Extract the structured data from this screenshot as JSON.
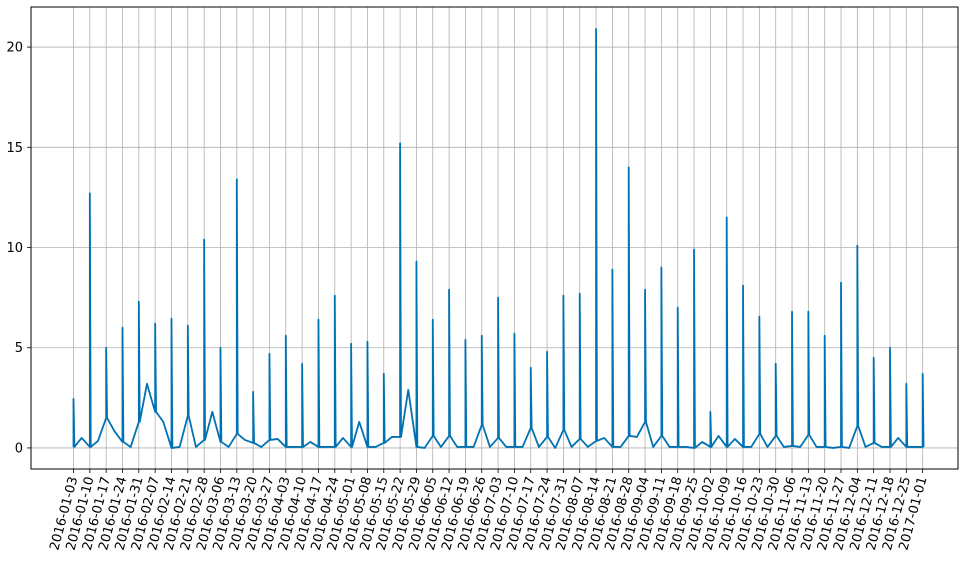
{
  "chart_data": {
    "type": "line",
    "title": "",
    "xlabel": "",
    "ylabel": "",
    "ylim": [
      -1.05,
      22.0
    ],
    "yticks": [
      0,
      5,
      10,
      15,
      20
    ],
    "grid": true,
    "line_color": "#0072B2",
    "x_tick_labels": [
      "2016-01-03",
      "2016-01-10",
      "2016-01-17",
      "2016-01-24",
      "2016-01-31",
      "2016-02-07",
      "2016-02-14",
      "2016-02-21",
      "2016-02-28",
      "2016-03-06",
      "2016-03-13",
      "2016-03-20",
      "2016-03-27",
      "2016-04-03",
      "2016-04-10",
      "2016-04-17",
      "2016-04-24",
      "2016-05-01",
      "2016-05-08",
      "2016-05-15",
      "2016-05-22",
      "2016-05-29",
      "2016-06-05",
      "2016-06-12",
      "2016-06-19",
      "2016-06-26",
      "2016-07-03",
      "2016-07-10",
      "2016-07-17",
      "2016-07-24",
      "2016-07-31",
      "2016-08-07",
      "2016-08-14",
      "2016-08-21",
      "2016-08-28",
      "2016-09-04",
      "2016-09-11",
      "2016-09-18",
      "2016-09-25",
      "2016-10-02",
      "2016-10-09",
      "2016-10-16",
      "2016-10-23",
      "2016-10-30",
      "2016-11-06",
      "2016-11-13",
      "2016-11-20",
      "2016-11-27",
      "2016-12-04",
      "2016-12-11",
      "2016-12-18",
      "2016-12-25",
      "2017-01-01"
    ],
    "series": [
      {
        "peaks": [
          2.45,
          12.7,
          5.0,
          6.0,
          7.3,
          6.2,
          6.45,
          6.1,
          10.4,
          5.0,
          13.4,
          2.8,
          4.7,
          5.6,
          4.2,
          6.4,
          7.6,
          5.2,
          5.3,
          3.7,
          15.2,
          9.3,
          6.4,
          7.9,
          5.4,
          5.6,
          7.5,
          5.7,
          4.0,
          4.8,
          7.6,
          7.7,
          20.9,
          8.9,
          14.0,
          7.9,
          9.0,
          7.0,
          9.9,
          1.8,
          11.5,
          8.1,
          6.55,
          4.2,
          6.8,
          6.8,
          5.6,
          8.25,
          10.1,
          4.5,
          5.0,
          3.2,
          3.7
        ],
        "valleys": [
          0.05,
          0.5,
          0.05,
          0.35,
          1.5,
          0.85,
          0.3,
          0.05,
          1.3,
          3.2,
          1.8,
          1.3,
          0.0,
          0.05,
          1.6,
          0.05,
          0.4,
          1.8,
          0.3,
          0.05,
          0.7,
          0.4,
          0.25,
          0.05,
          0.4,
          0.45,
          0.05,
          0.05,
          0.05,
          0.3,
          0.05,
          0.05,
          0.05,
          0.5,
          0.05,
          1.3,
          0.05,
          0.05,
          0.25,
          0.55,
          0.55,
          2.9,
          0.05,
          0.0,
          0.6,
          0.05,
          0.6,
          0.05,
          0.05,
          0.05,
          1.15,
          0.05,
          0.5,
          0.05,
          0.05,
          0.05,
          1.0,
          0.05,
          0.55,
          0.0,
          0.9,
          0.05,
          0.45,
          0.05,
          0.35,
          0.5,
          0.05,
          0.05,
          0.6,
          0.55,
          1.3,
          0.05,
          0.6,
          0.05,
          0.05,
          0.05,
          0.0,
          0.3,
          0.05,
          0.6,
          0.05,
          0.45,
          0.05,
          0.05,
          0.7,
          0.05,
          0.6,
          0.05,
          0.1,
          0.05,
          0.65,
          0.05,
          0.05,
          0.0,
          0.05,
          0.0,
          1.1,
          0.05,
          0.25,
          0.05,
          0.05,
          0.5,
          0.05,
          0.05,
          0.05,
          0.45,
          0.05,
          0.3,
          0.05,
          0.5
        ]
      }
    ]
  }
}
